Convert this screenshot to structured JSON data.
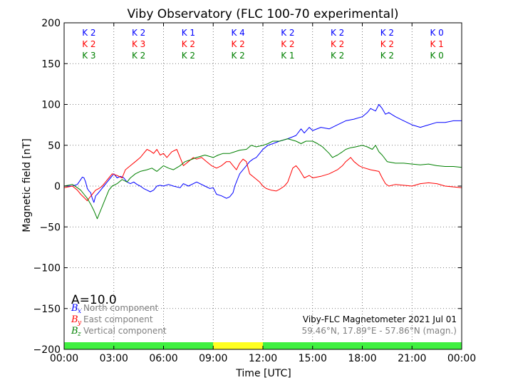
{
  "chart_data": {
    "type": "line",
    "title": "Viby Observatory (FLC 100-70 experimental)",
    "xlabel": "Time [UTC]",
    "ylabel": "Magnetic field [nT]",
    "xlim": [
      0,
      24
    ],
    "ylim": [
      -200,
      200
    ],
    "x_tick_labels": [
      "00:00",
      "03:00",
      "06:00",
      "09:00",
      "12:00",
      "15:00",
      "18:00",
      "21:00",
      "00:00"
    ],
    "y_ticks": [
      -200,
      -150,
      -100,
      -50,
      0,
      50,
      100,
      150,
      200
    ],
    "y_tick_labels": [
      "−200",
      "−150",
      "−100",
      "−50",
      "0",
      "50",
      "100",
      "150",
      "200"
    ],
    "grid": true,
    "k_indices": {
      "north": [
        "K 2",
        "K 2",
        "K 1",
        "K 4",
        "K 2",
        "K 2",
        "K 2",
        "K 0"
      ],
      "east": [
        "K 2",
        "K 3",
        "K 2",
        "K 2",
        "K 2",
        "K 2",
        "K 2",
        "K 1"
      ],
      "vertical": [
        "K 3",
        "K 2",
        "K 2",
        "K 2",
        "K 1",
        "K 2",
        "K 2",
        "K 0"
      ]
    },
    "a_index": "A=10.0",
    "activity_bar": [
      {
        "from": 0,
        "to": 9,
        "color": "#40f040"
      },
      {
        "from": 9,
        "to": 12,
        "color": "#ffff20"
      },
      {
        "from": 12,
        "to": 24,
        "color": "#40f040"
      }
    ],
    "series": [
      {
        "key": "north",
        "symbol": "B",
        "subscript": "x",
        "name": "North component",
        "color": "#0000ff",
        "points": [
          [
            0,
            0
          ],
          [
            0.5,
            0
          ],
          [
            0.8,
            2
          ],
          [
            1,
            8
          ],
          [
            1.1,
            11
          ],
          [
            1.2,
            10
          ],
          [
            1.3,
            5
          ],
          [
            1.4,
            -3
          ],
          [
            1.5,
            -6
          ],
          [
            1.6,
            -8
          ],
          [
            1.7,
            -15
          ],
          [
            1.8,
            -20
          ],
          [
            1.9,
            -12
          ],
          [
            2,
            -10
          ],
          [
            2.2,
            -5
          ],
          [
            2.4,
            0
          ],
          [
            2.6,
            5
          ],
          [
            2.8,
            10
          ],
          [
            3,
            15
          ],
          [
            3.2,
            10
          ],
          [
            3.4,
            12
          ],
          [
            3.6,
            10
          ],
          [
            3.8,
            5
          ],
          [
            4,
            3
          ],
          [
            4.2,
            5
          ],
          [
            4.4,
            2
          ],
          [
            4.6,
            0
          ],
          [
            4.8,
            -3
          ],
          [
            5,
            -5
          ],
          [
            5.2,
            -7
          ],
          [
            5.4,
            -5
          ],
          [
            5.6,
            0
          ],
          [
            5.8,
            1
          ],
          [
            6,
            0
          ],
          [
            6.3,
            2
          ],
          [
            6.6,
            0
          ],
          [
            7,
            -2
          ],
          [
            7.2,
            3
          ],
          [
            7.5,
            0
          ],
          [
            8,
            5
          ],
          [
            8.5,
            0
          ],
          [
            8.8,
            -3
          ],
          [
            9,
            -2
          ],
          [
            9.2,
            -10
          ],
          [
            9.5,
            -12
          ],
          [
            9.8,
            -15
          ],
          [
            10,
            -13
          ],
          [
            10.2,
            -8
          ],
          [
            10.3,
            0
          ],
          [
            10.4,
            5
          ],
          [
            10.5,
            10
          ],
          [
            10.6,
            15
          ],
          [
            10.8,
            20
          ],
          [
            11,
            25
          ],
          [
            11.2,
            30
          ],
          [
            11.4,
            33
          ],
          [
            11.6,
            35
          ],
          [
            11.8,
            40
          ],
          [
            12,
            45
          ],
          [
            12.3,
            50
          ],
          [
            12.6,
            52
          ],
          [
            13,
            55
          ],
          [
            13.5,
            58
          ],
          [
            14,
            62
          ],
          [
            14.3,
            70
          ],
          [
            14.5,
            65
          ],
          [
            14.8,
            72
          ],
          [
            15,
            68
          ],
          [
            15.5,
            72
          ],
          [
            16,
            70
          ],
          [
            16.5,
            75
          ],
          [
            17,
            80
          ],
          [
            17.5,
            82
          ],
          [
            18,
            85
          ],
          [
            18.3,
            90
          ],
          [
            18.5,
            95
          ],
          [
            18.8,
            92
          ],
          [
            19,
            100
          ],
          [
            19.2,
            95
          ],
          [
            19.4,
            88
          ],
          [
            19.6,
            90
          ],
          [
            20,
            85
          ],
          [
            20.5,
            80
          ],
          [
            21,
            75
          ],
          [
            21.5,
            72
          ],
          [
            22,
            75
          ],
          [
            22.5,
            78
          ],
          [
            23,
            78
          ],
          [
            23.5,
            80
          ],
          [
            24,
            80
          ]
        ]
      },
      {
        "key": "east",
        "symbol": "B",
        "subscript": "y",
        "name": "East component",
        "color": "#ff0000",
        "points": [
          [
            0,
            -2
          ],
          [
            0.5,
            0
          ],
          [
            0.8,
            -5
          ],
          [
            1,
            -10
          ],
          [
            1.2,
            -14
          ],
          [
            1.4,
            -18
          ],
          [
            1.5,
            -15
          ],
          [
            1.7,
            -10
          ],
          [
            1.9,
            -5
          ],
          [
            2.1,
            -3
          ],
          [
            2.3,
            0
          ],
          [
            2.5,
            5
          ],
          [
            2.7,
            10
          ],
          [
            2.9,
            15
          ],
          [
            3.2,
            13
          ],
          [
            3.5,
            10
          ],
          [
            3.7,
            20
          ],
          [
            4,
            25
          ],
          [
            4.3,
            30
          ],
          [
            4.6,
            35
          ],
          [
            4.8,
            40
          ],
          [
            5,
            45
          ],
          [
            5.2,
            43
          ],
          [
            5.4,
            40
          ],
          [
            5.6,
            45
          ],
          [
            5.8,
            38
          ],
          [
            6,
            40
          ],
          [
            6.2,
            35
          ],
          [
            6.5,
            42
          ],
          [
            6.8,
            45
          ],
          [
            7,
            35
          ],
          [
            7.2,
            25
          ],
          [
            7.5,
            30
          ],
          [
            7.8,
            35
          ],
          [
            8,
            33
          ],
          [
            8.3,
            35
          ],
          [
            8.6,
            30
          ],
          [
            8.9,
            25
          ],
          [
            9.2,
            22
          ],
          [
            9.5,
            25
          ],
          [
            9.8,
            30
          ],
          [
            10,
            30
          ],
          [
            10.2,
            25
          ],
          [
            10.4,
            20
          ],
          [
            10.6,
            28
          ],
          [
            10.8,
            33
          ],
          [
            11,
            30
          ],
          [
            11.2,
            15
          ],
          [
            11.5,
            10
          ],
          [
            11.8,
            5
          ],
          [
            12,
            0
          ],
          [
            12.2,
            -3
          ],
          [
            12.5,
            -5
          ],
          [
            12.8,
            -6
          ],
          [
            13,
            -4
          ],
          [
            13.3,
            0
          ],
          [
            13.5,
            5
          ],
          [
            13.8,
            22
          ],
          [
            14,
            25
          ],
          [
            14.2,
            20
          ],
          [
            14.5,
            10
          ],
          [
            14.8,
            13
          ],
          [
            15,
            10
          ],
          [
            15.5,
            12
          ],
          [
            16,
            15
          ],
          [
            16.5,
            20
          ],
          [
            16.8,
            25
          ],
          [
            17,
            30
          ],
          [
            17.3,
            35
          ],
          [
            17.5,
            30
          ],
          [
            17.8,
            25
          ],
          [
            18,
            23
          ],
          [
            18.5,
            20
          ],
          [
            19,
            18
          ],
          [
            19.2,
            10
          ],
          [
            19.4,
            3
          ],
          [
            19.6,
            0
          ],
          [
            20,
            2
          ],
          [
            20.5,
            1
          ],
          [
            21,
            0
          ],
          [
            21.5,
            3
          ],
          [
            22,
            4
          ],
          [
            22.5,
            3
          ],
          [
            23,
            0
          ],
          [
            23.5,
            -1
          ],
          [
            24,
            -2
          ]
        ]
      },
      {
        "key": "vertical",
        "symbol": "B",
        "subscript": "z",
        "name": "Vertical component",
        "color": "#008000",
        "points": [
          [
            0,
            0
          ],
          [
            0.5,
            2
          ],
          [
            0.8,
            -2
          ],
          [
            1,
            -5
          ],
          [
            1.2,
            -10
          ],
          [
            1.4,
            -15
          ],
          [
            1.6,
            -22
          ],
          [
            1.8,
            -30
          ],
          [
            1.9,
            -35
          ],
          [
            2,
            -40
          ],
          [
            2.1,
            -35
          ],
          [
            2.3,
            -25
          ],
          [
            2.5,
            -15
          ],
          [
            2.7,
            -5
          ],
          [
            2.9,
            0
          ],
          [
            3.2,
            3
          ],
          [
            3.5,
            8
          ],
          [
            3.8,
            5
          ],
          [
            4,
            10
          ],
          [
            4.3,
            15
          ],
          [
            4.6,
            18
          ],
          [
            5,
            20
          ],
          [
            5.3,
            22
          ],
          [
            5.6,
            18
          ],
          [
            6,
            25
          ],
          [
            6.3,
            22
          ],
          [
            6.6,
            20
          ],
          [
            7,
            25
          ],
          [
            7.3,
            30
          ],
          [
            7.6,
            32
          ],
          [
            8,
            35
          ],
          [
            8.5,
            38
          ],
          [
            9,
            35
          ],
          [
            9.3,
            38
          ],
          [
            9.6,
            40
          ],
          [
            10,
            40
          ],
          [
            10.3,
            42
          ],
          [
            10.6,
            44
          ],
          [
            11,
            45
          ],
          [
            11.3,
            50
          ],
          [
            11.6,
            48
          ],
          [
            12,
            50
          ],
          [
            12.3,
            52
          ],
          [
            12.6,
            55
          ],
          [
            13,
            55
          ],
          [
            13.5,
            58
          ],
          [
            14,
            55
          ],
          [
            14.3,
            52
          ],
          [
            14.6,
            55
          ],
          [
            15,
            55
          ],
          [
            15.3,
            52
          ],
          [
            15.6,
            48
          ],
          [
            16,
            40
          ],
          [
            16.2,
            35
          ],
          [
            16.5,
            38
          ],
          [
            16.8,
            42
          ],
          [
            17,
            45
          ],
          [
            17.3,
            47
          ],
          [
            17.6,
            48
          ],
          [
            18,
            50
          ],
          [
            18.3,
            48
          ],
          [
            18.6,
            45
          ],
          [
            18.8,
            50
          ],
          [
            19,
            42
          ],
          [
            19.2,
            38
          ],
          [
            19.5,
            30
          ],
          [
            20,
            28
          ],
          [
            20.5,
            28
          ],
          [
            21,
            27
          ],
          [
            21.5,
            26
          ],
          [
            22,
            27
          ],
          [
            22.5,
            25
          ],
          [
            23,
            24
          ],
          [
            23.5,
            24
          ],
          [
            24,
            23
          ]
        ]
      }
    ],
    "info_line_1": "Viby-FLC Magnetometer 2021 Jul 01",
    "info_line_2": "59.46°N, 17.89°E - 57.86°N (magn.)"
  }
}
